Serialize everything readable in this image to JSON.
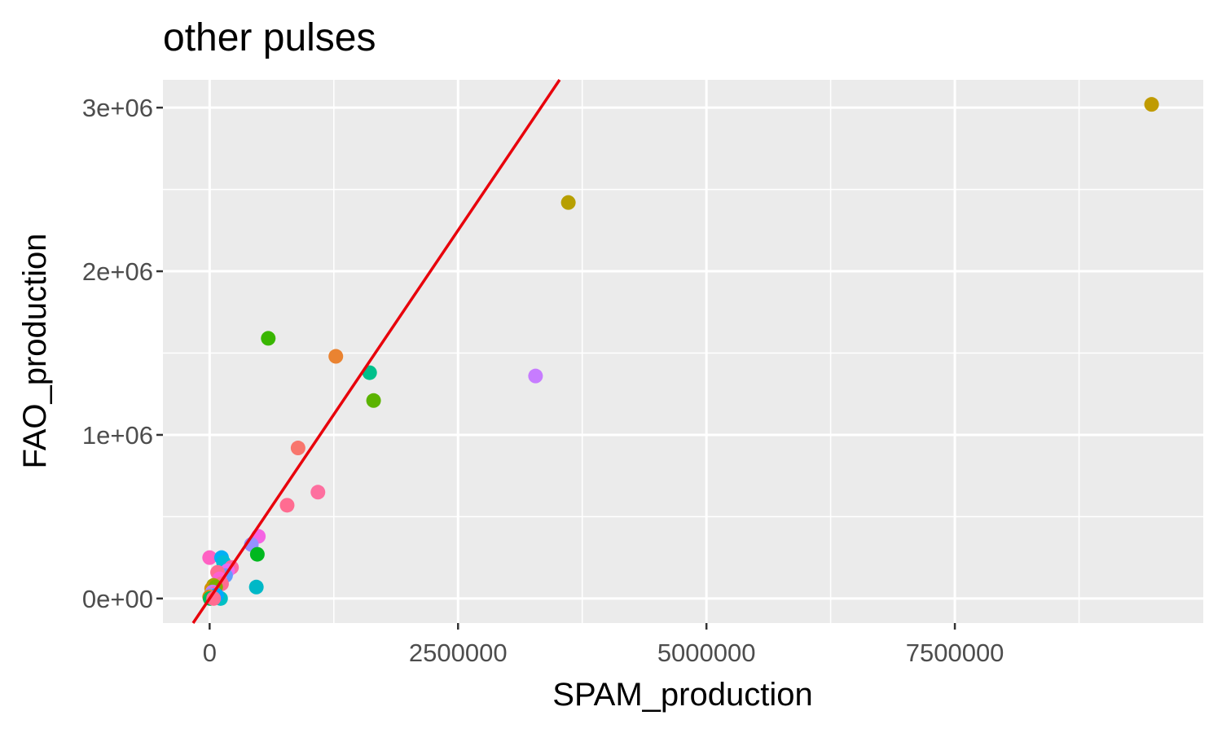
{
  "chart_data": {
    "type": "scatter",
    "title": "other pulses",
    "xlabel": "SPAM_production",
    "ylabel": "FAO_production",
    "xlim": [
      -470000,
      10000000
    ],
    "ylim": [
      -150000,
      3170000
    ],
    "x_ticks": [
      0,
      2500000,
      5000000,
      7500000
    ],
    "x_tick_labels": [
      "0",
      "2500000",
      "5000000",
      "7500000"
    ],
    "x_minor_ticks": [
      1250000,
      3750000,
      6250000,
      8750000
    ],
    "y_ticks": [
      0,
      1000000,
      2000000,
      3000000
    ],
    "y_tick_labels": [
      "0e+00",
      "1e+06",
      "2e+06",
      "3e+06"
    ],
    "y_minor_ticks": [
      500000,
      1500000,
      2500000
    ],
    "grid": true,
    "legend": "none",
    "colors": {
      "panel_background": "#ebebeb",
      "grid": "#ffffff",
      "reference_line": "#e8000b",
      "tick_text": "#4d4d4d"
    },
    "reference_line": {
      "type": "abline",
      "intercept": 0,
      "slope": 0.9
    },
    "points": [
      {
        "x": 9480000,
        "y": 3020000,
        "color": "#c09b00"
      },
      {
        "x": 3610000,
        "y": 2420000,
        "color": "#b79f00"
      },
      {
        "x": 3280000,
        "y": 1360000,
        "color": "#c77cff"
      },
      {
        "x": 590000,
        "y": 1590000,
        "color": "#39b600"
      },
      {
        "x": 1270000,
        "y": 1480000,
        "color": "#ea8331"
      },
      {
        "x": 1610000,
        "y": 1380000,
        "color": "#00c08b"
      },
      {
        "x": 1650000,
        "y": 1210000,
        "color": "#5bb300"
      },
      {
        "x": 890000,
        "y": 920000,
        "color": "#f8766d"
      },
      {
        "x": 1090000,
        "y": 650000,
        "color": "#fd6f9f"
      },
      {
        "x": 780000,
        "y": 570000,
        "color": "#ff6c91"
      },
      {
        "x": 490000,
        "y": 380000,
        "color": "#f564e3"
      },
      {
        "x": 420000,
        "y": 330000,
        "color": "#9590ff"
      },
      {
        "x": 480000,
        "y": 270000,
        "color": "#00b81f"
      },
      {
        "x": 470000,
        "y": 70000,
        "color": "#00b8c7"
      },
      {
        "x": 0,
        "y": 250000,
        "color": "#ff61c3"
      },
      {
        "x": 120000,
        "y": 250000,
        "color": "#00b0f6"
      },
      {
        "x": 140000,
        "y": 220000,
        "color": "#00bcd8"
      },
      {
        "x": 220000,
        "y": 190000,
        "color": "#ff67a4"
      },
      {
        "x": 180000,
        "y": 170000,
        "color": "#e76bf3"
      },
      {
        "x": 160000,
        "y": 140000,
        "color": "#619cff"
      },
      {
        "x": 80000,
        "y": 160000,
        "color": "#ff6c91"
      },
      {
        "x": 100000,
        "y": 120000,
        "color": "#fd61d1"
      },
      {
        "x": 120000,
        "y": 90000,
        "color": "#ff6c91"
      },
      {
        "x": 40000,
        "y": 80000,
        "color": "#a3a500"
      },
      {
        "x": 20000,
        "y": 60000,
        "color": "#d39200"
      },
      {
        "x": 60000,
        "y": 70000,
        "color": "#7cae00"
      },
      {
        "x": 110000,
        "y": 0,
        "color": "#00bfc4"
      },
      {
        "x": 30000,
        "y": 40000,
        "color": "#c77cff"
      },
      {
        "x": 50000,
        "y": 30000,
        "color": "#ff64b0"
      },
      {
        "x": 10000,
        "y": 20000,
        "color": "#9590ff"
      },
      {
        "x": 70000,
        "y": 20000,
        "color": "#00a9ff"
      },
      {
        "x": 0,
        "y": 10000,
        "color": "#e58700"
      },
      {
        "x": 20000,
        "y": 5000,
        "color": "#f8766d"
      },
      {
        "x": 5000,
        "y": 0,
        "color": "#00bd5c"
      },
      {
        "x": 40000,
        "y": 0,
        "color": "#ff6c91"
      }
    ]
  }
}
